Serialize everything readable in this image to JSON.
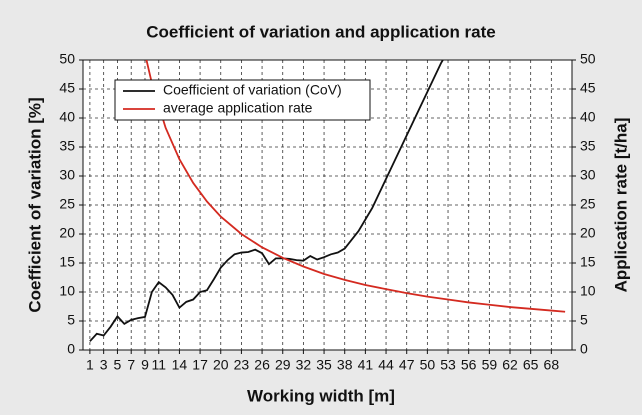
{
  "chart_data": {
    "type": "line",
    "title": "Coefficient of variation and application rate",
    "x_label": "Working width [m]",
    "y_label": "Coefficient of variation [%]",
    "y2_label": "Application rate [t/ha]",
    "xlim": [
      0,
      71
    ],
    "xticks": [
      1,
      3,
      5,
      7,
      9,
      11,
      14,
      17,
      20,
      23,
      26,
      29,
      32,
      35,
      38,
      41,
      44,
      47,
      50,
      53,
      56,
      59,
      62,
      65,
      68
    ],
    "ylim": [
      0,
      50
    ],
    "yticks": [
      0,
      5,
      10,
      15,
      20,
      25,
      30,
      35,
      40,
      45,
      50
    ],
    "y2lim": [
      0,
      50
    ],
    "y2ticks": [
      0,
      5,
      10,
      15,
      20,
      25,
      30,
      35,
      40,
      45,
      50
    ],
    "grid": true,
    "legend": "upper left",
    "series": [
      {
        "name": "Coefficient of variation (CoV)",
        "color": "#111111",
        "x": [
          1,
          2,
          3,
          4,
          5,
          6,
          7,
          8,
          9,
          10,
          11,
          12,
          13,
          14,
          15,
          16,
          17,
          18,
          19,
          20,
          21,
          22,
          23,
          24,
          25,
          26,
          27,
          28,
          29,
          30,
          31,
          32,
          33,
          34,
          35,
          36,
          37,
          38,
          39,
          40,
          41,
          42,
          43,
          44,
          45,
          46,
          47,
          48,
          49,
          50,
          51,
          52,
          53
        ],
        "values": [
          1.5,
          2.8,
          2.5,
          4,
          5.8,
          4.5,
          5.2,
          5.5,
          5.7,
          10,
          11.7,
          10.8,
          9.5,
          7.3,
          8.3,
          8.7,
          10,
          10.3,
          12.2,
          14.2,
          15.5,
          16.5,
          16.8,
          16.9,
          17.3,
          16.7,
          14.8,
          15.8,
          15.8,
          15.7,
          15.5,
          15.4,
          16.2,
          15.6,
          16,
          16.5,
          16.8,
          17.5,
          19,
          20.5,
          22.5,
          24.5,
          27,
          29.5,
          32,
          34.5,
          37,
          39.5,
          42,
          44.5,
          47,
          49.5,
          51.5
        ]
      },
      {
        "name": "average application rate",
        "color": "#d42a20",
        "axis": "y2",
        "x": [
          9,
          10,
          12,
          14,
          16,
          18,
          20,
          23,
          26,
          29,
          32,
          35,
          38,
          41,
          44,
          47,
          50,
          53,
          56,
          59,
          62,
          65,
          68,
          70
        ],
        "values": [
          51.1,
          46,
          38.3,
          32.9,
          28.8,
          25.6,
          23,
          20,
          17.7,
          15.9,
          14.4,
          13.1,
          12.1,
          11.2,
          10.5,
          9.8,
          9.2,
          8.7,
          8.2,
          7.8,
          7.4,
          7.1,
          6.8,
          6.6
        ]
      }
    ]
  }
}
